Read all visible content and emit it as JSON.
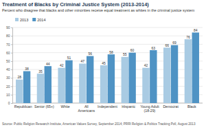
{
  "chart_data": {
    "type": "bar",
    "title": "Treatment of Blacks by Criminal Justice System (2013-2014)",
    "subtitle": "Percent who disagree that blacks and other minorities receive equal treatment as whites in the criminal justice system",
    "source": "Source: Public Religion Research Institute, American Values Survey, September 2014; PRRI Religion & Politics Tracking Poll, August 2013",
    "categories": [
      "Republican",
      "Senior (65+)",
      "White",
      "All Americans",
      "Independent",
      "Hispanic",
      "Young Adult (18-29)",
      "Democrat",
      "Black"
    ],
    "series": [
      {
        "name": "2013",
        "color": "#a9cbe3",
        "values": [
          28,
          35,
          42,
          47,
          45,
          55,
          42,
          66,
          76
        ]
      },
      {
        "name": "2014",
        "color": "#4f93c4",
        "values": [
          38,
          44,
          51,
          56,
          58,
          60,
          63,
          69,
          84
        ]
      }
    ],
    "ylim": [
      0,
      90
    ],
    "yticks": [
      0,
      10,
      20,
      30,
      40,
      50,
      60,
      70,
      80,
      90
    ],
    "grid": true,
    "legend": "top-left",
    "data_labels": true
  }
}
